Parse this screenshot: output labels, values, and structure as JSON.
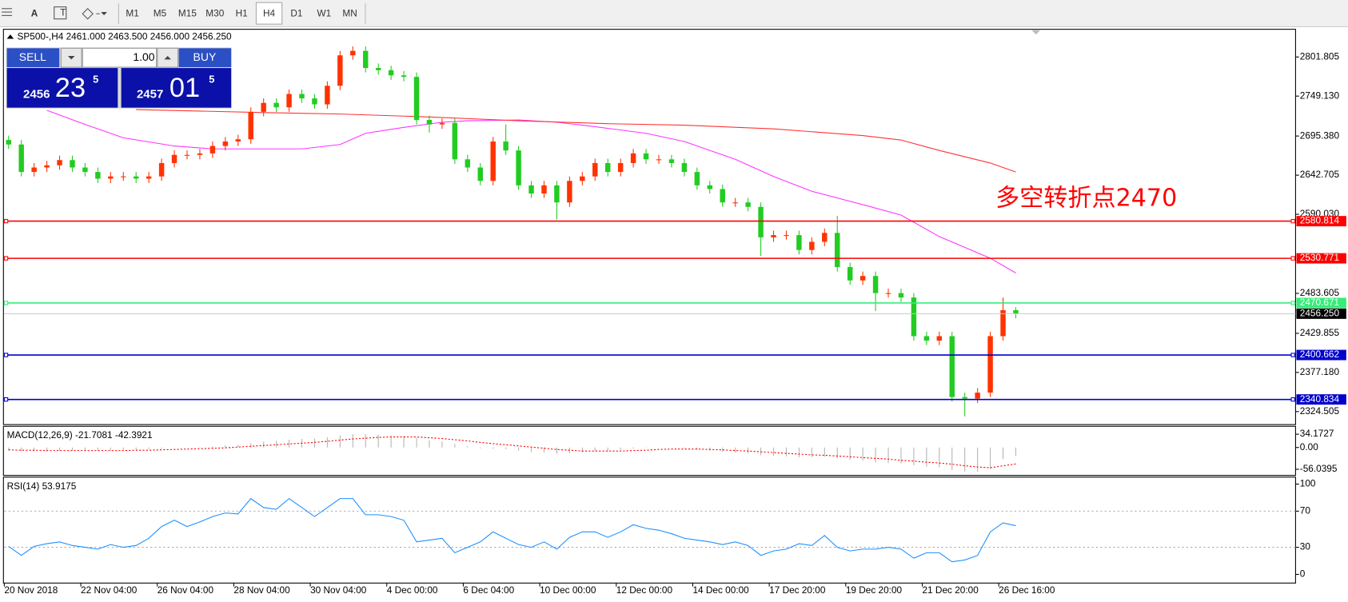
{
  "toolbar": {
    "font_button": "A",
    "buttons": [
      "M1",
      "M5",
      "M15",
      "M30",
      "H1",
      "H4",
      "D1",
      "W1",
      "MN"
    ],
    "selected_index": 5
  },
  "trade_panel": {
    "sell": "SELL",
    "lots": "1.00",
    "buy": "BUY",
    "bid": {
      "big": "2456",
      "large": "23",
      "small": "5"
    },
    "ask": {
      "big": "2457",
      "large": "01",
      "small": "5"
    }
  },
  "chart_data": [
    {
      "type": "candlestick",
      "title": "SP500-,H4  2461.000 2463.500 2456.000 2456.250",
      "annotation": "多空转折点2470",
      "annotation_color": "#ff0000",
      "up_color": "#ff3300",
      "down_color": "#22cc22",
      "categories": [
        "20 Nov 2018",
        null,
        null,
        null,
        null,
        null,
        "22 Nov 04:00",
        null,
        null,
        null,
        null,
        null,
        "26 Nov 04:00",
        null,
        null,
        null,
        null,
        null,
        "28 Nov 04:00",
        null,
        null,
        null,
        null,
        null,
        "30 Nov 04:00",
        null,
        null,
        null,
        null,
        null,
        "4 Dec 00:00",
        null,
        null,
        null,
        null,
        null,
        "6 Dec 04:00",
        null,
        null,
        null,
        null,
        null,
        "10 Dec 00:00",
        null,
        null,
        null,
        null,
        null,
        "12 Dec 00:00",
        null,
        null,
        null,
        null,
        null,
        "14 Dec 00:00",
        null,
        null,
        null,
        null,
        null,
        "17 Dec 20:00",
        null,
        null,
        null,
        null,
        null,
        "19 Dec 20:00",
        null,
        null,
        null,
        null,
        null,
        "21 Dec 20:00",
        null,
        null,
        null,
        null,
        null,
        "26 Dec 16:00",
        null
      ],
      "open": [
        2690,
        2684,
        2647,
        2653,
        2656,
        2663,
        2653,
        2647,
        2638,
        2641,
        2641,
        2638,
        2641,
        2659,
        2670,
        2670,
        2672,
        2682,
        2688,
        2691,
        2728,
        2740,
        2734,
        2752,
        2746,
        2738,
        2763,
        2804,
        2810,
        2787,
        2784,
        2777,
        2775,
        2717,
        2711,
        2713,
        2664,
        2653,
        2635,
        2688,
        2676,
        2629,
        2618,
        2629,
        2606,
        2635,
        2641,
        2659,
        2647,
        2659,
        2672,
        2664,
        2664,
        2659,
        2647,
        2629,
        2624,
        2606,
        2606,
        2600,
        2559,
        2562,
        2562,
        2542,
        2553,
        2565,
        2519,
        2501,
        2507,
        2484,
        2484,
        2478,
        2426,
        2420,
        2426,
        2344,
        2342,
        2350,
        2426,
        2461
      ],
      "high": [
        2696,
        2690,
        2659,
        2662,
        2669,
        2669,
        2659,
        2653,
        2647,
        2647,
        2647,
        2647,
        2665,
        2676,
        2676,
        2678,
        2688,
        2694,
        2697,
        2734,
        2746,
        2746,
        2758,
        2758,
        2752,
        2769,
        2810,
        2816,
        2816,
        2793,
        2790,
        2783,
        2781,
        2723,
        2719,
        2719,
        2670,
        2659,
        2694,
        2711,
        2682,
        2635,
        2635,
        2635,
        2641,
        2647,
        2665,
        2665,
        2665,
        2678,
        2678,
        2670,
        2670,
        2665,
        2653,
        2635,
        2630,
        2612,
        2612,
        2606,
        2568,
        2568,
        2568,
        2559,
        2571,
        2588,
        2525,
        2513,
        2513,
        2490,
        2490,
        2484,
        2432,
        2432,
        2432,
        2350,
        2356,
        2432,
        2478,
        2465
      ],
      "low": [
        2678,
        2641,
        2641,
        2647,
        2650,
        2647,
        2641,
        2632,
        2632,
        2635,
        2632,
        2632,
        2635,
        2653,
        2664,
        2664,
        2666,
        2676,
        2682,
        2685,
        2722,
        2728,
        2728,
        2740,
        2732,
        2732,
        2757,
        2798,
        2781,
        2778,
        2771,
        2769,
        2711,
        2700,
        2705,
        2658,
        2647,
        2629,
        2629,
        2670,
        2623,
        2612,
        2612,
        2583,
        2600,
        2629,
        2635,
        2641,
        2641,
        2653,
        2658,
        2658,
        2653,
        2641,
        2623,
        2618,
        2600,
        2600,
        2594,
        2534,
        2553,
        2556,
        2536,
        2536,
        2547,
        2513,
        2495,
        2495,
        2460,
        2478,
        2472,
        2420,
        2414,
        2414,
        2338,
        2318,
        2336,
        2344,
        2420,
        2450
      ],
      "close": [
        2684,
        2647,
        2653,
        2656,
        2663,
        2653,
        2647,
        2638,
        2641,
        2641,
        2638,
        2641,
        2659,
        2670,
        2670,
        2672,
        2682,
        2688,
        2691,
        2728,
        2740,
        2734,
        2752,
        2746,
        2738,
        2763,
        2804,
        2810,
        2787,
        2784,
        2777,
        2775,
        2717,
        2711,
        2713,
        2664,
        2653,
        2635,
        2688,
        2676,
        2629,
        2618,
        2629,
        2606,
        2635,
        2641,
        2659,
        2647,
        2659,
        2672,
        2664,
        2664,
        2659,
        2647,
        2629,
        2624,
        2606,
        2606,
        2600,
        2559,
        2562,
        2562,
        2542,
        2553,
        2565,
        2519,
        2501,
        2507,
        2484,
        2484,
        2478,
        2426,
        2420,
        2426,
        2344,
        2342,
        2350,
        2426,
        2461,
        2456.25
      ],
      "moving_averages": [
        {
          "color": "#ff33ff",
          "x": [
            3,
            6,
            9,
            13,
            16,
            20,
            23,
            26,
            28,
            31,
            34,
            36,
            40,
            43,
            46,
            50,
            53,
            57,
            60,
            63,
            67,
            70,
            73,
            77,
            79
          ],
          "values": [
            2730,
            2711,
            2693,
            2682,
            2678,
            2678,
            2678,
            2684,
            2699,
            2707,
            2714,
            2716,
            2717,
            2714,
            2708,
            2699,
            2688,
            2664,
            2641,
            2621,
            2603,
            2589,
            2560,
            2531,
            2511
          ]
        },
        {
          "color": "#ff3333",
          "x": [
            10,
            20,
            26,
            33,
            40,
            47,
            53,
            60,
            67,
            70,
            73,
            77,
            79
          ],
          "values": [
            2731,
            2727,
            2725,
            2721,
            2716,
            2712,
            2710,
            2705,
            2696,
            2690,
            2676,
            2659,
            2647
          ]
        }
      ],
      "levels": [
        {
          "value": 2580.814,
          "color": "#ff0000"
        },
        {
          "value": 2530.771,
          "color": "#ff0000"
        },
        {
          "value": 2470.671,
          "color": "#33ee77"
        },
        {
          "value": 2456.25,
          "label": "2456.250",
          "color": "#c8c8c8",
          "box_color": "#000000"
        },
        {
          "value": 2400.662,
          "color": "#0000cc"
        },
        {
          "value": 2340.834,
          "color": "#0000cc"
        }
      ],
      "ylim": [
        2307,
        2839.05
      ],
      "yticks": [
        2801.805,
        {
          "value": 2749.13,
          "label": "2749.130"
        },
        {
          "value": 2695.38,
          "label": "2695.380"
        },
        2642.705,
        {
          "value": 2590.03,
          "label": "2590.030"
        },
        2483.605,
        2429.855,
        {
          "value": 2377.18,
          "label": "2377.180"
        },
        2324.505
      ]
    },
    {
      "type": "macd",
      "title": "MACD(12,26,9) -21.7081 -42.3921",
      "histogram_color": "#b4b4b4",
      "signal_color": "#ff0000",
      "values": [
        -8,
        -9,
        -10,
        -10,
        -9,
        -8,
        -8,
        -8,
        -7,
        -6,
        -5,
        -4,
        -3,
        -1,
        0,
        1,
        3,
        5,
        7,
        11,
        15,
        17,
        20,
        22,
        23,
        26,
        31,
        34,
        34,
        33,
        31,
        29,
        24,
        19,
        15,
        9,
        3,
        -2,
        -3,
        -4,
        -8,
        -12,
        -13,
        -16,
        -15,
        -13,
        -9,
        -8,
        -6,
        -3,
        -1,
        0,
        0,
        -2,
        -5,
        -8,
        -11,
        -13,
        -15,
        -20,
        -22,
        -23,
        -25,
        -25,
        -24,
        -28,
        -32,
        -34,
        -38,
        -40,
        -41,
        -46,
        -49,
        -51,
        -58,
        -62,
        -63,
        -55,
        -30,
        -21.7081
      ],
      "signal": [
        -6,
        -7,
        -7,
        -8,
        -8,
        -8,
        -8,
        -8,
        -8,
        -8,
        -7,
        -7,
        -6,
        -5,
        -4,
        -3,
        -2,
        -1,
        1,
        3,
        5,
        7,
        9,
        11,
        13,
        16,
        19,
        22,
        24,
        26,
        27,
        27,
        27,
        25,
        23,
        20,
        17,
        13,
        10,
        7,
        4,
        1,
        -2,
        -5,
        -7,
        -9,
        -9,
        -9,
        -9,
        -8,
        -7,
        -5,
        -4,
        -4,
        -4,
        -5,
        -6,
        -8,
        -9,
        -11,
        -13,
        -15,
        -17,
        -19,
        -20,
        -22,
        -24,
        -26,
        -28,
        -30,
        -33,
        -35,
        -38,
        -40,
        -43,
        -47,
        -50,
        -52,
        -47,
        -42.3921
      ],
      "ylim": [
        -71.8,
        54.5
      ],
      "yticks": [
        34.1727,
        {
          "value": 0,
          "label": "0.00"
        },
        -56.0395
      ]
    },
    {
      "type": "line",
      "title": "RSI(14) 53.9175",
      "color": "#1e90ff",
      "values": [
        31,
        21,
        31,
        34,
        36,
        32,
        30,
        28,
        33,
        30,
        32,
        40,
        53,
        60,
        53,
        58,
        64,
        68,
        67,
        84,
        74,
        72,
        84,
        74,
        64,
        74,
        84,
        84,
        66,
        66,
        64,
        60,
        36,
        38,
        40,
        24,
        30,
        36,
        47,
        40,
        33,
        30,
        36,
        28,
        41,
        47,
        47,
        41,
        47,
        55,
        51,
        49,
        45,
        40,
        38,
        36,
        33,
        36,
        32,
        21,
        26,
        28,
        34,
        32,
        43,
        30,
        26,
        28,
        28,
        30,
        28,
        18,
        24,
        24,
        14,
        16,
        21,
        47,
        57,
        53.9175
      ],
      "levels": [
        70,
        30
      ],
      "ylim": [
        -9.6,
        107.7
      ],
      "yticks": [
        100,
        70,
        30,
        0
      ]
    }
  ]
}
